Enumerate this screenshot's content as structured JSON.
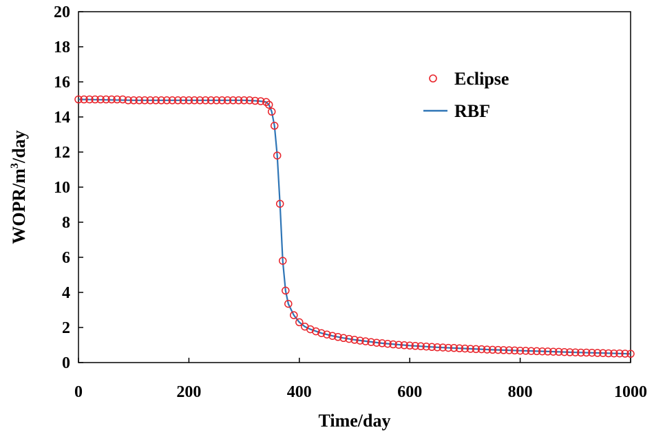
{
  "chart_data": {
    "type": "line",
    "title": "",
    "xlabel": "Time/day",
    "ylabel_parts": {
      "pre": "WOPR/m",
      "sup": "3",
      "post": "/day"
    },
    "xlim": [
      0,
      1000
    ],
    "ylim": [
      0,
      20
    ],
    "xticks": [
      0,
      200,
      400,
      600,
      800,
      1000
    ],
    "yticks": [
      0,
      2,
      4,
      6,
      8,
      10,
      12,
      14,
      16,
      18,
      20
    ],
    "grid": false,
    "legend_position": "top-right",
    "series": [
      {
        "name": "Eclipse",
        "style": "markers",
        "marker": "open-circle",
        "color": "#e8232a",
        "x": [
          0,
          10,
          20,
          30,
          40,
          50,
          60,
          70,
          80,
          90,
          100,
          110,
          120,
          130,
          140,
          150,
          160,
          170,
          180,
          190,
          200,
          210,
          220,
          230,
          240,
          250,
          260,
          270,
          280,
          290,
          300,
          310,
          320,
          330,
          340,
          345,
          350,
          355,
          360,
          365,
          370,
          375,
          380,
          390,
          400,
          410,
          420,
          430,
          440,
          450,
          460,
          470,
          480,
          490,
          500,
          510,
          520,
          530,
          540,
          550,
          560,
          570,
          580,
          590,
          600,
          610,
          620,
          630,
          640,
          650,
          660,
          670,
          680,
          690,
          700,
          710,
          720,
          730,
          740,
          750,
          760,
          770,
          780,
          790,
          800,
          810,
          820,
          830,
          840,
          850,
          860,
          870,
          880,
          890,
          900,
          910,
          920,
          930,
          940,
          950,
          960,
          970,
          980,
          990,
          1000
        ],
        "y": [
          15.0,
          15.0,
          15.0,
          15.0,
          15.0,
          15.0,
          15.0,
          15.0,
          15.0,
          14.95,
          14.95,
          14.95,
          14.95,
          14.95,
          14.95,
          14.95,
          14.95,
          14.95,
          14.95,
          14.95,
          14.95,
          14.95,
          14.95,
          14.95,
          14.95,
          14.95,
          14.95,
          14.95,
          14.95,
          14.95,
          14.95,
          14.95,
          14.92,
          14.9,
          14.85,
          14.7,
          14.3,
          13.5,
          11.8,
          9.05,
          5.8,
          4.1,
          3.35,
          2.7,
          2.3,
          2.05,
          1.9,
          1.78,
          1.68,
          1.6,
          1.52,
          1.46,
          1.4,
          1.35,
          1.3,
          1.25,
          1.21,
          1.17,
          1.13,
          1.1,
          1.07,
          1.04,
          1.01,
          0.99,
          0.97,
          0.95,
          0.93,
          0.91,
          0.89,
          0.87,
          0.86,
          0.84,
          0.83,
          0.81,
          0.8,
          0.78,
          0.77,
          0.76,
          0.74,
          0.73,
          0.72,
          0.71,
          0.7,
          0.69,
          0.68,
          0.67,
          0.66,
          0.65,
          0.64,
          0.63,
          0.62,
          0.61,
          0.6,
          0.59,
          0.58,
          0.57,
          0.57,
          0.56,
          0.55,
          0.54,
          0.53,
          0.52,
          0.52,
          0.51,
          0.5
        ]
      },
      {
        "name": "RBF",
        "style": "line",
        "color": "#2e75b6",
        "x": [
          0,
          100,
          200,
          300,
          320,
          330,
          340,
          345,
          350,
          355,
          360,
          365,
          370,
          375,
          380,
          390,
          400,
          410,
          420,
          440,
          460,
          480,
          500,
          550,
          600,
          650,
          700,
          750,
          800,
          850,
          900,
          950,
          1000
        ],
        "y": [
          15.0,
          14.95,
          14.95,
          14.95,
          14.92,
          14.9,
          14.85,
          14.7,
          14.3,
          13.5,
          11.8,
          9.05,
          5.8,
          4.1,
          3.35,
          2.7,
          2.3,
          2.05,
          1.9,
          1.68,
          1.52,
          1.4,
          1.3,
          1.1,
          0.97,
          0.87,
          0.8,
          0.73,
          0.68,
          0.63,
          0.58,
          0.54,
          0.5
        ]
      }
    ]
  }
}
